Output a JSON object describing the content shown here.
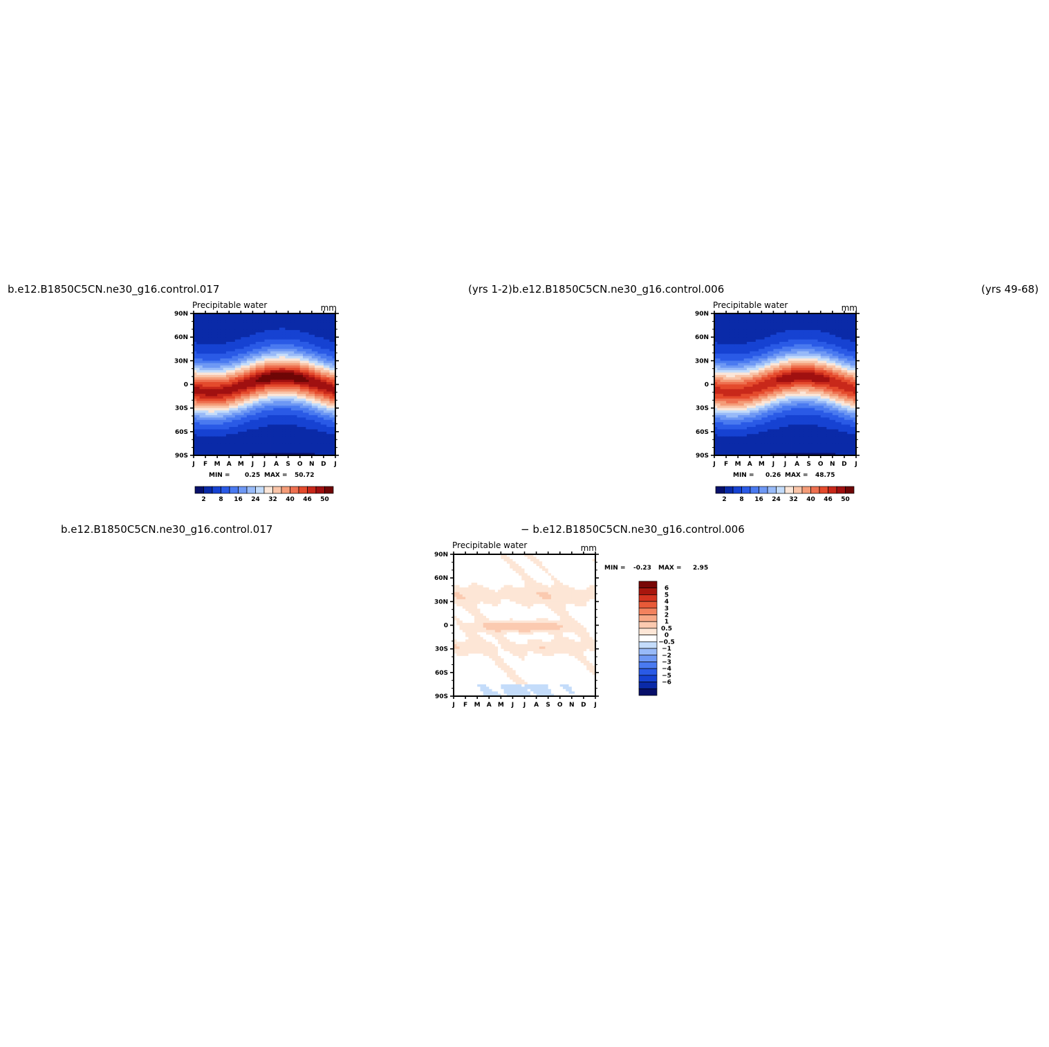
{
  "header": {
    "left_case": "b.e12.B1850C5CN.ne30_g16.control.017",
    "mid_case": "(yrs  1-2)b.e12.B1850C5CN.ne30_g16.control.006",
    "right_yrs": "(yrs  49-68)",
    "diff_left_case": "b.e12.B1850C5CN.ne30_g16.control.017",
    "diff_right_case": "−  b.e12.B1850C5CN.ne30_g16.control.006"
  },
  "colors": {
    "abs_levels": [
      "#08106a",
      "#0a2aa8",
      "#1642d2",
      "#2a5ae6",
      "#4a7af0",
      "#6e98f4",
      "#98baf8",
      "#c4dcfa",
      "#fbe6d8",
      "#f9c4a8",
      "#f49c78",
      "#ee7050",
      "#e44a2c",
      "#c8281a",
      "#a01010",
      "#6e0606"
    ],
    "diff_levels": [
      "#08106a",
      "#0a2aa8",
      "#1642d2",
      "#2a5ae6",
      "#4a7af0",
      "#6e98f4",
      "#98baf8",
      "#c4dcfa",
      "#ffffff",
      "#fde6d6",
      "#fbcab0",
      "#f7a886",
      "#f2825e",
      "#e85a38",
      "#d43420",
      "#a8160e",
      "#780606"
    ]
  },
  "chart_data": [
    {
      "type": "heatmap",
      "id": "control017",
      "title": "Precipitable  water",
      "units": "mm",
      "stats": {
        "min_label": "MIN =",
        "min": "0.25",
        "max_label": "MAX =",
        "max": "50.72"
      },
      "x_ticks": [
        "J",
        "F",
        "M",
        "A",
        "M",
        "J",
        "J",
        "A",
        "S",
        "O",
        "N",
        "D",
        "J"
      ],
      "y_ticks": [
        "90N",
        "60N",
        "30N",
        "0",
        "30S",
        "60S",
        "90S"
      ],
      "colorbar_labels": [
        "2",
        "8",
        "16",
        "24",
        "32",
        "40",
        "46",
        "50"
      ],
      "field": {
        "eq_peak": 50.7,
        "peak_month": 7.5,
        "peak_lat": 10
      }
    },
    {
      "type": "heatmap",
      "id": "control006",
      "title": "Precipitable  water",
      "units": "mm",
      "stats": {
        "min_label": "MIN =",
        "min": "0.26",
        "max_label": "MAX =",
        "max": "48.75"
      },
      "x_ticks": [
        "J",
        "F",
        "M",
        "A",
        "M",
        "J",
        "J",
        "A",
        "S",
        "O",
        "N",
        "D",
        "J"
      ],
      "y_ticks": [
        "90N",
        "60N",
        "30N",
        "0",
        "30S",
        "60S",
        "90S"
      ],
      "colorbar_labels": [
        "2",
        "8",
        "16",
        "24",
        "32",
        "40",
        "46",
        "50"
      ],
      "field": {
        "eq_peak": 48.8,
        "peak_month": 7.5,
        "peak_lat": 10
      }
    },
    {
      "type": "heatmap",
      "id": "difference",
      "title": "Precipitable  water",
      "units": "mm",
      "stats": {
        "min_label": "MIN =",
        "min": "-0.23",
        "max_label": "MAX =",
        "max": "2.95"
      },
      "x_ticks": [
        "J",
        "F",
        "M",
        "A",
        "M",
        "J",
        "J",
        "A",
        "S",
        "O",
        "N",
        "D",
        "J"
      ],
      "y_ticks": [
        "90N",
        "60N",
        "30N",
        "0",
        "30S",
        "60S",
        "90S"
      ],
      "colorbar_labels": [
        "6",
        "5",
        "4",
        "3",
        "2",
        "1",
        "0.5",
        "0",
        "−0.5",
        "−1",
        "−2",
        "−3",
        "−4",
        "−5",
        "−6"
      ]
    }
  ]
}
